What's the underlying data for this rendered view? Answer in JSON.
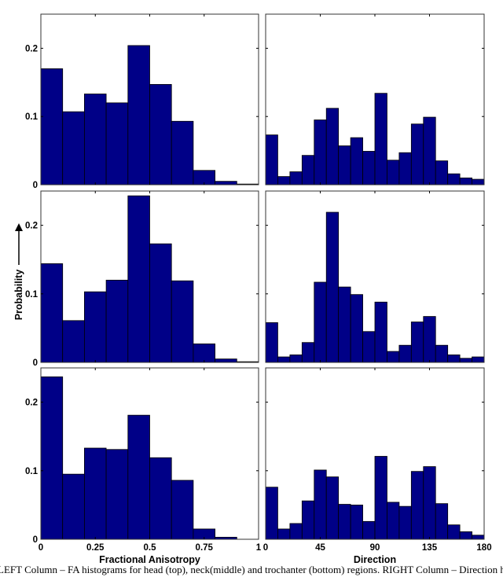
{
  "y_axis_label": "Probability",
  "caption": "LEFT Column – FA histograms for head (top), neck(middle) and trochanter (bottom) regions. RIGHT Column – Direction histog",
  "colors": {
    "bar_fill": "#000087",
    "bar_edge": "#000000",
    "axes": "#000000"
  },
  "chart_data": [
    {
      "type": "bar",
      "panel": "left-top",
      "xlabel": "",
      "ylabel": "",
      "xlim": [
        0,
        1
      ],
      "ylim": [
        0,
        0.25
      ],
      "bin_edges": [
        0,
        0.1,
        0.2,
        0.3,
        0.4,
        0.5,
        0.6,
        0.7,
        0.8,
        0.9,
        1.0
      ],
      "values": [
        0.17,
        0.107,
        0.133,
        0.12,
        0.204,
        0.147,
        0.093,
        0.021,
        0.005,
        0.001
      ],
      "xticks": [],
      "yticks": [
        {
          "v": 0,
          "label": "0"
        },
        {
          "v": 0.1,
          "label": "0.1"
        },
        {
          "v": 0.2,
          "label": "0.2"
        }
      ],
      "grid": false
    },
    {
      "type": "bar",
      "panel": "right-top",
      "xlabel": "",
      "ylabel": "",
      "xlim": [
        0,
        180
      ],
      "ylim": [
        0,
        0.25
      ],
      "bin_edges": [
        0,
        10,
        20,
        30,
        40,
        50,
        60,
        70,
        80,
        90,
        100,
        110,
        120,
        130,
        140,
        150,
        160,
        170,
        180
      ],
      "values": [
        0.073,
        0.012,
        0.019,
        0.043,
        0.095,
        0.112,
        0.057,
        0.069,
        0.049,
        0.134,
        0.036,
        0.047,
        0.089,
        0.099,
        0.035,
        0.016,
        0.01,
        0.008
      ],
      "xticks": [],
      "yticks": [],
      "grid": false
    },
    {
      "type": "bar",
      "panel": "left-middle",
      "xlabel": "",
      "ylabel": "Probability",
      "xlim": [
        0,
        1
      ],
      "ylim": [
        0,
        0.25
      ],
      "bin_edges": [
        0,
        0.1,
        0.2,
        0.3,
        0.4,
        0.5,
        0.6,
        0.7,
        0.8,
        0.9,
        1.0
      ],
      "values": [
        0.144,
        0.061,
        0.103,
        0.12,
        0.243,
        0.173,
        0.119,
        0.027,
        0.005,
        0.001
      ],
      "xticks": [],
      "yticks": [
        {
          "v": 0,
          "label": "0"
        },
        {
          "v": 0.1,
          "label": "0.1"
        },
        {
          "v": 0.2,
          "label": "0.2"
        }
      ],
      "grid": false
    },
    {
      "type": "bar",
      "panel": "right-middle",
      "xlabel": "",
      "ylabel": "",
      "xlim": [
        0,
        180
      ],
      "ylim": [
        0,
        0.25
      ],
      "bin_edges": [
        0,
        10,
        20,
        30,
        40,
        50,
        60,
        70,
        80,
        90,
        100,
        110,
        120,
        130,
        140,
        150,
        160,
        170,
        180
      ],
      "values": [
        0.058,
        0.008,
        0.011,
        0.029,
        0.117,
        0.219,
        0.11,
        0.099,
        0.045,
        0.088,
        0.016,
        0.025,
        0.059,
        0.067,
        0.025,
        0.011,
        0.006,
        0.008
      ],
      "xticks": [],
      "yticks": [],
      "grid": false
    },
    {
      "type": "bar",
      "panel": "left-bottom",
      "xlabel": "Fractional Anisotropy",
      "ylabel": "",
      "xlim": [
        0,
        1
      ],
      "ylim": [
        0,
        0.25
      ],
      "bin_edges": [
        0,
        0.1,
        0.2,
        0.3,
        0.4,
        0.5,
        0.6,
        0.7,
        0.8,
        0.9,
        1.0
      ],
      "values": [
        0.237,
        0.095,
        0.133,
        0.131,
        0.181,
        0.119,
        0.086,
        0.015,
        0.003,
        0.0
      ],
      "xticks": [
        {
          "v": 0,
          "label": "0"
        },
        {
          "v": 0.25,
          "label": "0.25"
        },
        {
          "v": 0.5,
          "label": "0.5"
        },
        {
          "v": 0.75,
          "label": "0.75"
        },
        {
          "v": 1,
          "label": "1"
        }
      ],
      "yticks": [
        {
          "v": 0,
          "label": "0"
        },
        {
          "v": 0.1,
          "label": "0.1"
        },
        {
          "v": 0.2,
          "label": "0.2"
        }
      ],
      "grid": false
    },
    {
      "type": "bar",
      "panel": "right-bottom",
      "xlabel": "Direction",
      "ylabel": "",
      "xlim": [
        0,
        180
      ],
      "ylim": [
        0,
        0.25
      ],
      "bin_edges": [
        0,
        10,
        20,
        30,
        40,
        50,
        60,
        70,
        80,
        90,
        100,
        110,
        120,
        130,
        140,
        150,
        160,
        170,
        180
      ],
      "values": [
        0.076,
        0.015,
        0.023,
        0.056,
        0.101,
        0.091,
        0.051,
        0.05,
        0.026,
        0.121,
        0.054,
        0.048,
        0.099,
        0.106,
        0.052,
        0.021,
        0.011,
        0.006
      ],
      "xticks": [
        {
          "v": 0,
          "label": "0"
        },
        {
          "v": 45,
          "label": "45"
        },
        {
          "v": 90,
          "label": "90"
        },
        {
          "v": 135,
          "label": "135"
        },
        {
          "v": 180,
          "label": "180"
        }
      ],
      "yticks": [],
      "grid": false
    }
  ]
}
